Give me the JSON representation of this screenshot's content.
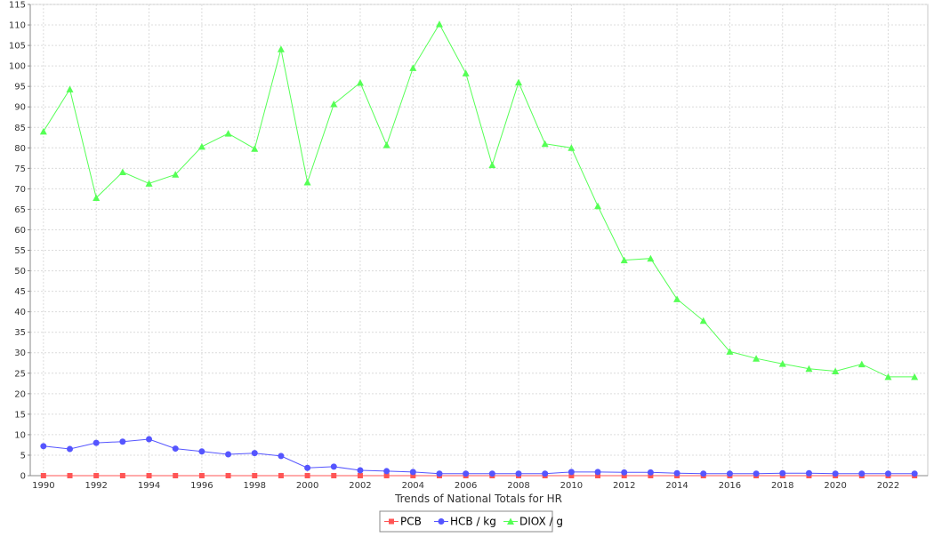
{
  "chart_data": {
    "type": "line",
    "xlabel": "Trends of National Totals for HR",
    "ylabel": "",
    "ylim": [
      0,
      115
    ],
    "y_ticks": [
      0,
      5,
      10,
      15,
      20,
      25,
      30,
      35,
      40,
      45,
      50,
      55,
      60,
      65,
      70,
      75,
      80,
      85,
      90,
      95,
      100,
      105,
      110,
      115
    ],
    "x_tick_labels": [
      "1990",
      "1992",
      "1994",
      "1996",
      "1998",
      "2000",
      "2002",
      "2004",
      "2006",
      "2008",
      "2010",
      "2012",
      "2014",
      "2016",
      "2018",
      "2020",
      "2022"
    ],
    "grid": true,
    "legend_position": "bottom-center",
    "x": [
      1990,
      1991,
      1992,
      1993,
      1994,
      1995,
      1996,
      1997,
      1998,
      1999,
      2000,
      2001,
      2002,
      2003,
      2004,
      2005,
      2006,
      2007,
      2008,
      2009,
      2010,
      2011,
      2012,
      2013,
      2014,
      2015,
      2016,
      2017,
      2018,
      2019,
      2020,
      2021,
      2022,
      2023
    ],
    "series": [
      {
        "name": "PCB",
        "color": "#ff5555",
        "marker": "square",
        "values": [
          0,
          0,
          0,
          0,
          0,
          0,
          0,
          0,
          0,
          0,
          0,
          0,
          0,
          0,
          0,
          0,
          0,
          0,
          0,
          0,
          0,
          0,
          0,
          0,
          0,
          0,
          0,
          0,
          0,
          0,
          0,
          0,
          0,
          0
        ]
      },
      {
        "name": "HCB / kg",
        "color": "#5555ff",
        "marker": "circle",
        "values": [
          7.2,
          6.5,
          8.0,
          8.3,
          8.9,
          6.6,
          5.9,
          5.2,
          5.5,
          4.8,
          1.9,
          2.2,
          1.3,
          1.1,
          0.9,
          0.5,
          0.5,
          0.5,
          0.5,
          0.5,
          0.9,
          0.9,
          0.8,
          0.8,
          0.6,
          0.5,
          0.5,
          0.5,
          0.6,
          0.6,
          0.5,
          0.5,
          0.5,
          0.5
        ]
      },
      {
        "name": "DIOX / g",
        "color": "#55ff55",
        "marker": "triangle",
        "values": [
          84.0,
          94.3,
          67.8,
          74.1,
          71.3,
          73.5,
          80.3,
          83.5,
          79.8,
          104.1,
          71.6,
          90.7,
          95.9,
          80.7,
          99.5,
          110.2,
          98.2,
          75.8,
          96.0,
          81.0,
          80.0,
          65.8,
          52.6,
          53.0,
          43.1,
          37.8,
          30.3,
          28.6,
          27.3,
          26.1,
          25.5,
          27.2,
          24.1,
          24.1
        ]
      }
    ]
  }
}
